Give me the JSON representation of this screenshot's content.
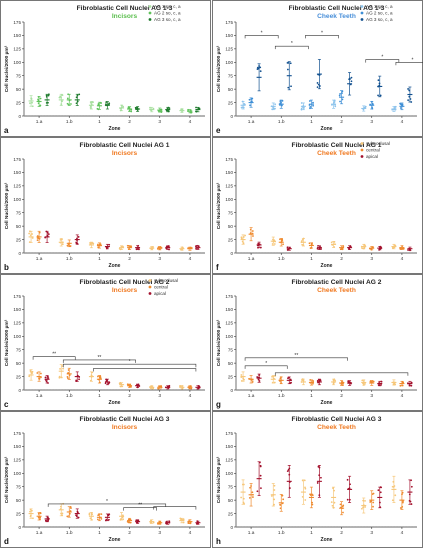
{
  "colors": {
    "green_light": "#a8dfa0",
    "green_mid": "#5fc25a",
    "green_dark": "#1d7a2c",
    "blue_light": "#8cc3ec",
    "blue_mid": "#3e8fd6",
    "blue_dark": "#11508f",
    "orange_light": "#f6c77a",
    "orange_mid": "#ef8a2e",
    "crimson": "#a3102c",
    "green_title": "#5cbf4f",
    "blue_title": "#4a90d9",
    "orange_title": "#f07a22"
  },
  "axis_common": {
    "ylabel": "Cell Nuclei/2000 µm²",
    "xlabel": "Zone",
    "zones": [
      "1.a",
      "1.b",
      "1",
      "2",
      "3",
      "4"
    ],
    "yticks": [
      0,
      25,
      50,
      75,
      100,
      125,
      150,
      175
    ],
    "ylim": [
      0,
      175
    ]
  },
  "chart_data": [
    {
      "panel": "a",
      "type": "scatter",
      "title": "Fibroblastic Cell Nuclei AG 1-3",
      "subtitle": "Incisors",
      "subtitle_color": "#5cbf4f",
      "categories": [
        "1.a",
        "1.b",
        "1",
        "2",
        "3",
        "4"
      ],
      "legend": [
        "AG 1 so, c, a",
        "AG 2 so, c, a",
        "AG 3 so, c, a"
      ],
      "legend_position": "top-right",
      "series": [
        {
          "color": "#a8dfa0",
          "values": [
            28,
            30,
            20,
            15,
            12,
            10
          ]
        },
        {
          "color": "#5fc25a",
          "values": [
            27,
            30,
            19,
            13,
            11,
            9
          ]
        },
        {
          "color": "#1d7a2c",
          "values": [
            30,
            30,
            20,
            13,
            12,
            12
          ]
        }
      ],
      "brackets": []
    },
    {
      "panel": "e",
      "type": "scatter",
      "title": "Fibroblastic Cell Nuclei AG 1-3",
      "subtitle": "Cheek Teeth",
      "subtitle_color": "#4a90d9",
      "categories": [
        "1.a",
        "1.b",
        "1",
        "2",
        "3",
        "4"
      ],
      "legend": [
        "AG 1 so, c, a",
        "AG 2 so, c, a",
        "AG 3 so, c, a"
      ],
      "legend_position": "top-right",
      "series": [
        {
          "color": "#8cc3ec",
          "values": [
            20,
            18,
            18,
            22,
            14,
            13
          ]
        },
        {
          "color": "#3e8fd6",
          "values": [
            25,
            22,
            22,
            35,
            20,
            18
          ]
        },
        {
          "color": "#11508f",
          "values": [
            72,
            75,
            78,
            60,
            55,
            40
          ]
        }
      ],
      "brackets": [
        {
          "x1": 0,
          "x2": 0.7,
          "y": 150,
          "label": "*"
        },
        {
          "x1": 1,
          "x2": 1.7,
          "y": 130,
          "label": "*"
        },
        {
          "x1": 2,
          "x2": 2.7,
          "y": 150,
          "label": "*"
        },
        {
          "x1": 4,
          "x2": 4.7,
          "y": 105,
          "label": "*"
        },
        {
          "x1": 5,
          "x2": 5.7,
          "y": 100,
          "label": "*"
        }
      ]
    },
    {
      "panel": "b",
      "type": "scatter",
      "title": "Fibroblastic Cell Nuclei AG 1",
      "subtitle": "Incisors",
      "subtitle_color": "#f07a22",
      "categories": [
        "1.a",
        "1.b",
        "1",
        "2",
        "3",
        "4"
      ],
      "legend": [],
      "series": [
        {
          "color": "#f6c77a",
          "values": [
            30,
            20,
            15,
            10,
            9,
            8
          ]
        },
        {
          "color": "#ef8a2e",
          "values": [
            30,
            18,
            14,
            10,
            9,
            8
          ]
        },
        {
          "color": "#a3102c",
          "values": [
            30,
            25,
            12,
            10,
            10,
            10
          ]
        }
      ],
      "brackets": []
    },
    {
      "panel": "f",
      "type": "scatter",
      "title": "Fibroblastic Cell Nuclei AG 1",
      "subtitle": "Cheek Teeth",
      "subtitle_color": "#f07a22",
      "categories": [
        "1.a",
        "1.b",
        "1",
        "2",
        "3",
        "4"
      ],
      "legend": [
        "subocclusal",
        "central",
        "apical"
      ],
      "legend_position": "top-right",
      "series": [
        {
          "color": "#f6c77a",
          "values": [
            25,
            22,
            20,
            16,
            12,
            12
          ]
        },
        {
          "color": "#ef8a2e",
          "values": [
            35,
            20,
            14,
            10,
            9,
            10
          ]
        },
        {
          "color": "#a3102c",
          "values": [
            15,
            8,
            10,
            10,
            9,
            8
          ]
        }
      ],
      "brackets": []
    },
    {
      "panel": "c",
      "type": "scatter",
      "title": "Fibroblastic Cell Nuclei AG 2",
      "subtitle": "Incisors",
      "subtitle_color": "#f07a22",
      "categories": [
        "1.a",
        "1.b",
        "1",
        "2",
        "3",
        "4"
      ],
      "legend": [
        "subocclusal",
        "central",
        "apical"
      ],
      "legend_position": "top-right",
      "series": [
        {
          "color": "#f6c77a",
          "values": [
            28,
            35,
            25,
            10,
            5,
            5
          ]
        },
        {
          "color": "#ef8a2e",
          "values": [
            25,
            30,
            20,
            8,
            5,
            5
          ]
        },
        {
          "color": "#a3102c",
          "values": [
            20,
            25,
            15,
            8,
            5,
            5
          ]
        }
      ],
      "brackets": [
        {
          "x1": 0,
          "x2": 1,
          "y": 62,
          "label": "**"
        },
        {
          "x1": 1,
          "x2": 3,
          "y": 56,
          "label": "**"
        },
        {
          "x1": 1,
          "x2": 5,
          "y": 48,
          "label": "*"
        },
        {
          "x1": 2,
          "x2": 5,
          "y": 40,
          "label": ""
        }
      ]
    },
    {
      "panel": "g",
      "type": "scatter",
      "title": "Fibroblastic Cell Nuclei AG 2",
      "subtitle": "Cheek Teeth",
      "subtitle_color": "#f07a22",
      "categories": [
        "1.a",
        "1.b",
        "1",
        "2",
        "3",
        "4"
      ],
      "legend": [],
      "series": [
        {
          "color": "#f6c77a",
          "values": [
            25,
            20,
            15,
            15,
            14,
            14
          ]
        },
        {
          "color": "#ef8a2e",
          "values": [
            20,
            18,
            14,
            13,
            13,
            12
          ]
        },
        {
          "color": "#a3102c",
          "values": [
            22,
            18,
            15,
            13,
            12,
            12
          ]
        }
      ],
      "brackets": [
        {
          "x1": 0,
          "x2": 1,
          "y": 45,
          "label": "*"
        },
        {
          "x1": 0,
          "x2": 3,
          "y": 60,
          "label": "**"
        },
        {
          "x1": 1,
          "x2": 5,
          "y": 32,
          "label": ""
        }
      ]
    },
    {
      "panel": "d",
      "type": "scatter",
      "title": "Fibroblastic Cell Nuclei AG 3",
      "subtitle": "Incisors",
      "subtitle_color": "#f07a22",
      "categories": [
        "1.a",
        "1.b",
        "1",
        "2",
        "3",
        "4"
      ],
      "legend": [],
      "series": [
        {
          "color": "#f6c77a",
          "values": [
            25,
            32,
            20,
            20,
            10,
            12
          ]
        },
        {
          "color": "#ef8a2e",
          "values": [
            20,
            28,
            18,
            12,
            8,
            10
          ]
        },
        {
          "color": "#a3102c",
          "values": [
            15,
            25,
            18,
            10,
            8,
            8
          ]
        }
      ],
      "brackets": [
        {
          "x1": 0.5,
          "x2": 4,
          "y": 43,
          "label": "*"
        },
        {
          "x1": 3,
          "x2": 3.7,
          "y": 36,
          "label": "**"
        },
        {
          "x1": 4,
          "x2": 5,
          "y": 38,
          "label": ""
        }
      ]
    },
    {
      "panel": "h",
      "type": "scatter",
      "title": "Fibroblastic Cell Nuclei AG 3",
      "subtitle": "Cheek Teeth",
      "subtitle_color": "#f07a22",
      "categories": [
        "1.a",
        "1.b",
        "1",
        "2",
        "3",
        "4"
      ],
      "legend": [],
      "series": [
        {
          "color": "#f6c77a",
          "values": [
            65,
            60,
            65,
            55,
            40,
            70
          ]
        },
        {
          "color": "#ef8a2e",
          "values": [
            60,
            45,
            55,
            35,
            50,
            50
          ]
        },
        {
          "color": "#a3102c",
          "values": [
            90,
            85,
            85,
            70,
            55,
            65
          ]
        }
      ],
      "brackets": []
    }
  ]
}
